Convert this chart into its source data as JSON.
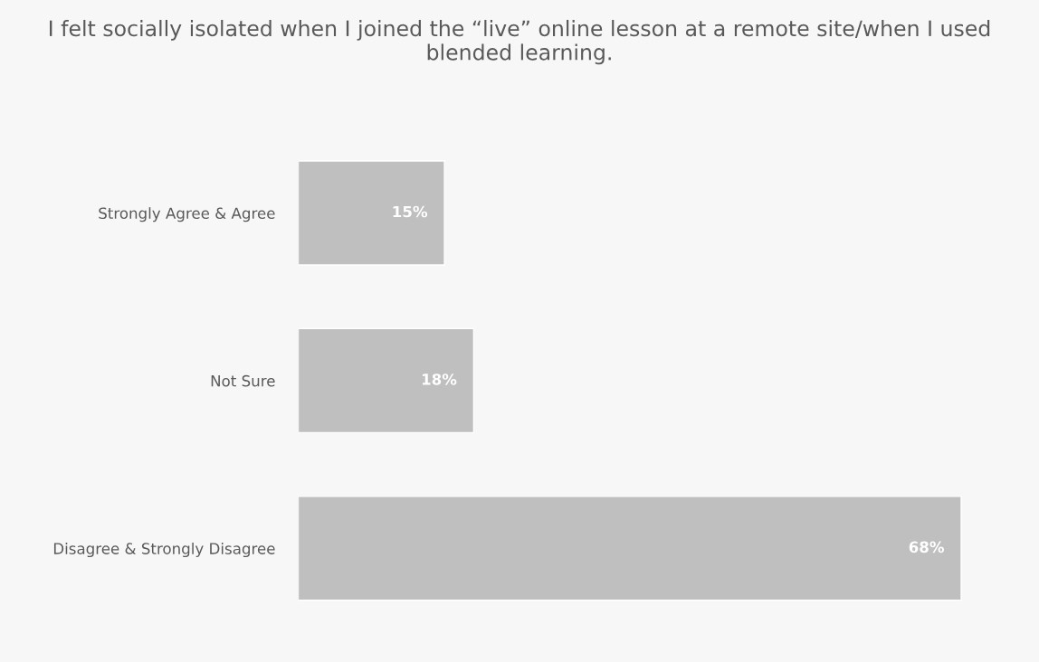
{
  "chart_data": {
    "type": "bar",
    "orientation": "horizontal",
    "title": "I felt socially isolated when I joined the “live” online lesson at a remote site/when I used blended learning.",
    "categories": [
      "Strongly Agree & Agree",
      "Not Sure",
      "Disagree & Strongly Disagree"
    ],
    "values": [
      15,
      18,
      68
    ],
    "value_labels": [
      "15%",
      "18%",
      "68%"
    ],
    "color": "#bfbfbf"
  }
}
